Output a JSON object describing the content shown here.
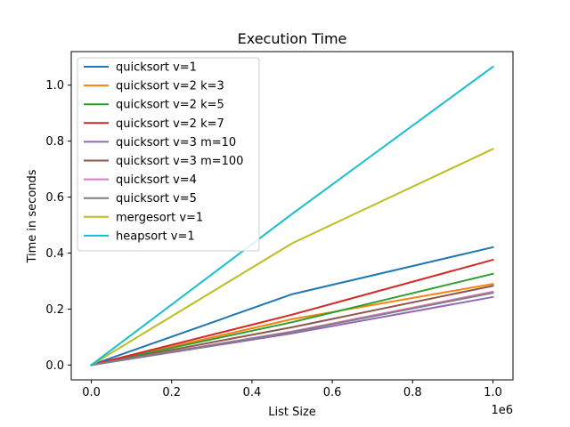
{
  "chart_data": {
    "type": "line",
    "title": "Execution Time",
    "xlabel": "List Size",
    "ylabel": "Time in seconds",
    "x_offset_label": "1e6",
    "x": [
      0,
      500000,
      1000000
    ],
    "xlim": [
      -50000,
      1050000
    ],
    "ylim": [
      -0.053,
      1.12
    ],
    "x_ticks": [
      0,
      200000,
      400000,
      600000,
      800000,
      1000000
    ],
    "x_tick_labels": [
      "0.0",
      "0.2",
      "0.4",
      "0.6",
      "0.8",
      "1.0"
    ],
    "y_ticks": [
      0.0,
      0.2,
      0.4,
      0.6,
      0.8,
      1.0
    ],
    "y_tick_labels": [
      "0.0",
      "0.2",
      "0.4",
      "0.6",
      "0.8",
      "1.0"
    ],
    "grid": false,
    "legend_position": "upper-left",
    "series": [
      {
        "name": "quicksort v=1",
        "color": "#1f77b4",
        "values": [
          0.0,
          0.253,
          0.421
        ]
      },
      {
        "name": "quicksort v=2 k=3",
        "color": "#ff7f0e",
        "values": [
          0.0,
          0.164,
          0.29
        ]
      },
      {
        "name": "quicksort v=2 k=5",
        "color": "#2ca02c",
        "values": [
          0.0,
          0.153,
          0.326
        ]
      },
      {
        "name": "quicksort v=2 k=7",
        "color": "#d62728",
        "values": [
          0.0,
          0.18,
          0.376
        ]
      },
      {
        "name": "quicksort v=3 m=10",
        "color": "#9467bd",
        "values": [
          0.0,
          0.113,
          0.243
        ]
      },
      {
        "name": "quicksort v=3 m=100",
        "color": "#8c564b",
        "values": [
          0.0,
          0.135,
          0.283
        ]
      },
      {
        "name": "quicksort v=4",
        "color": "#e377c2",
        "values": [
          0.0,
          0.12,
          0.262
        ]
      },
      {
        "name": "quicksort v=5",
        "color": "#7f7f7f",
        "values": [
          0.0,
          0.118,
          0.258
        ]
      },
      {
        "name": "mergesort v=1",
        "color": "#bcbd22",
        "values": [
          0.0,
          0.435,
          0.772
        ]
      },
      {
        "name": "heapsort v=1",
        "color": "#17becf",
        "values": [
          0.0,
          0.54,
          1.066
        ]
      }
    ]
  }
}
